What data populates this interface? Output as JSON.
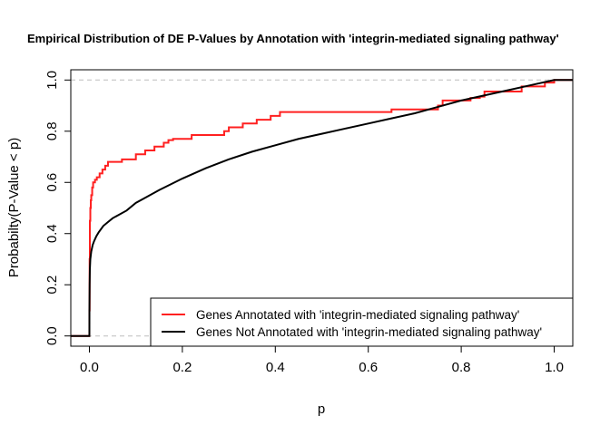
{
  "chart_data": {
    "type": "line",
    "title": "Empirical Distribution of DE P-Values by Annotation with 'integrin-mediated signaling pathway'",
    "xlabel": "p",
    "ylabel": "Probabilty(P-Value < p)",
    "xlim": [
      -0.04,
      1.04
    ],
    "ylim": [
      -0.04,
      1.04
    ],
    "x_ticks": [
      "0.0",
      "0.2",
      "0.4",
      "0.6",
      "0.8",
      "1.0"
    ],
    "y_ticks": [
      "0.0",
      "0.2",
      "0.4",
      "0.6",
      "0.8",
      "1.0"
    ],
    "reference_lines": [
      0,
      1
    ],
    "reference_line_style": "dashed gray",
    "grid": false,
    "legend_position": "bottom-right",
    "series": [
      {
        "name": "Genes Annotated with 'integrin-mediated signaling pathway'",
        "color": "#ff2020",
        "step": true,
        "x": [
          -0.04,
          0.0,
          0.0005,
          0.001,
          0.002,
          0.003,
          0.004,
          0.006,
          0.008,
          0.012,
          0.016,
          0.022,
          0.028,
          0.034,
          0.04,
          0.07,
          0.1,
          0.12,
          0.14,
          0.16,
          0.17,
          0.18,
          0.22,
          0.29,
          0.3,
          0.33,
          0.36,
          0.39,
          0.41,
          0.65,
          0.75,
          0.76,
          0.82,
          0.84,
          0.85,
          0.93,
          0.98,
          1.0,
          1.04
        ],
        "y": [
          0.0,
          0.1,
          0.3,
          0.45,
          0.5,
          0.53,
          0.55,
          0.58,
          0.6,
          0.61,
          0.62,
          0.635,
          0.65,
          0.665,
          0.68,
          0.69,
          0.71,
          0.725,
          0.74,
          0.755,
          0.765,
          0.77,
          0.785,
          0.8,
          0.815,
          0.83,
          0.845,
          0.86,
          0.875,
          0.885,
          0.9,
          0.92,
          0.93,
          0.935,
          0.955,
          0.975,
          0.99,
          1.0,
          1.0
        ]
      },
      {
        "name": "Genes Not Annotated with 'integrin-mediated signaling pathway'",
        "color": "#000000",
        "step": false,
        "x": [
          -0.04,
          0.0,
          0.0001,
          0.0005,
          0.001,
          0.002,
          0.004,
          0.007,
          0.01,
          0.015,
          0.02,
          0.03,
          0.04,
          0.05,
          0.06,
          0.08,
          0.1,
          0.12,
          0.15,
          0.2,
          0.25,
          0.3,
          0.35,
          0.4,
          0.45,
          0.5,
          0.55,
          0.6,
          0.65,
          0.7,
          0.75,
          0.8,
          0.85,
          0.9,
          0.95,
          1.0,
          1.04
        ],
        "y": [
          0.0,
          0.0,
          0.1,
          0.2,
          0.26,
          0.3,
          0.33,
          0.355,
          0.37,
          0.39,
          0.405,
          0.43,
          0.445,
          0.46,
          0.47,
          0.49,
          0.52,
          0.54,
          0.57,
          0.615,
          0.655,
          0.69,
          0.72,
          0.745,
          0.77,
          0.79,
          0.81,
          0.83,
          0.85,
          0.87,
          0.895,
          0.92,
          0.94,
          0.96,
          0.98,
          1.0,
          1.0
        ]
      }
    ]
  }
}
